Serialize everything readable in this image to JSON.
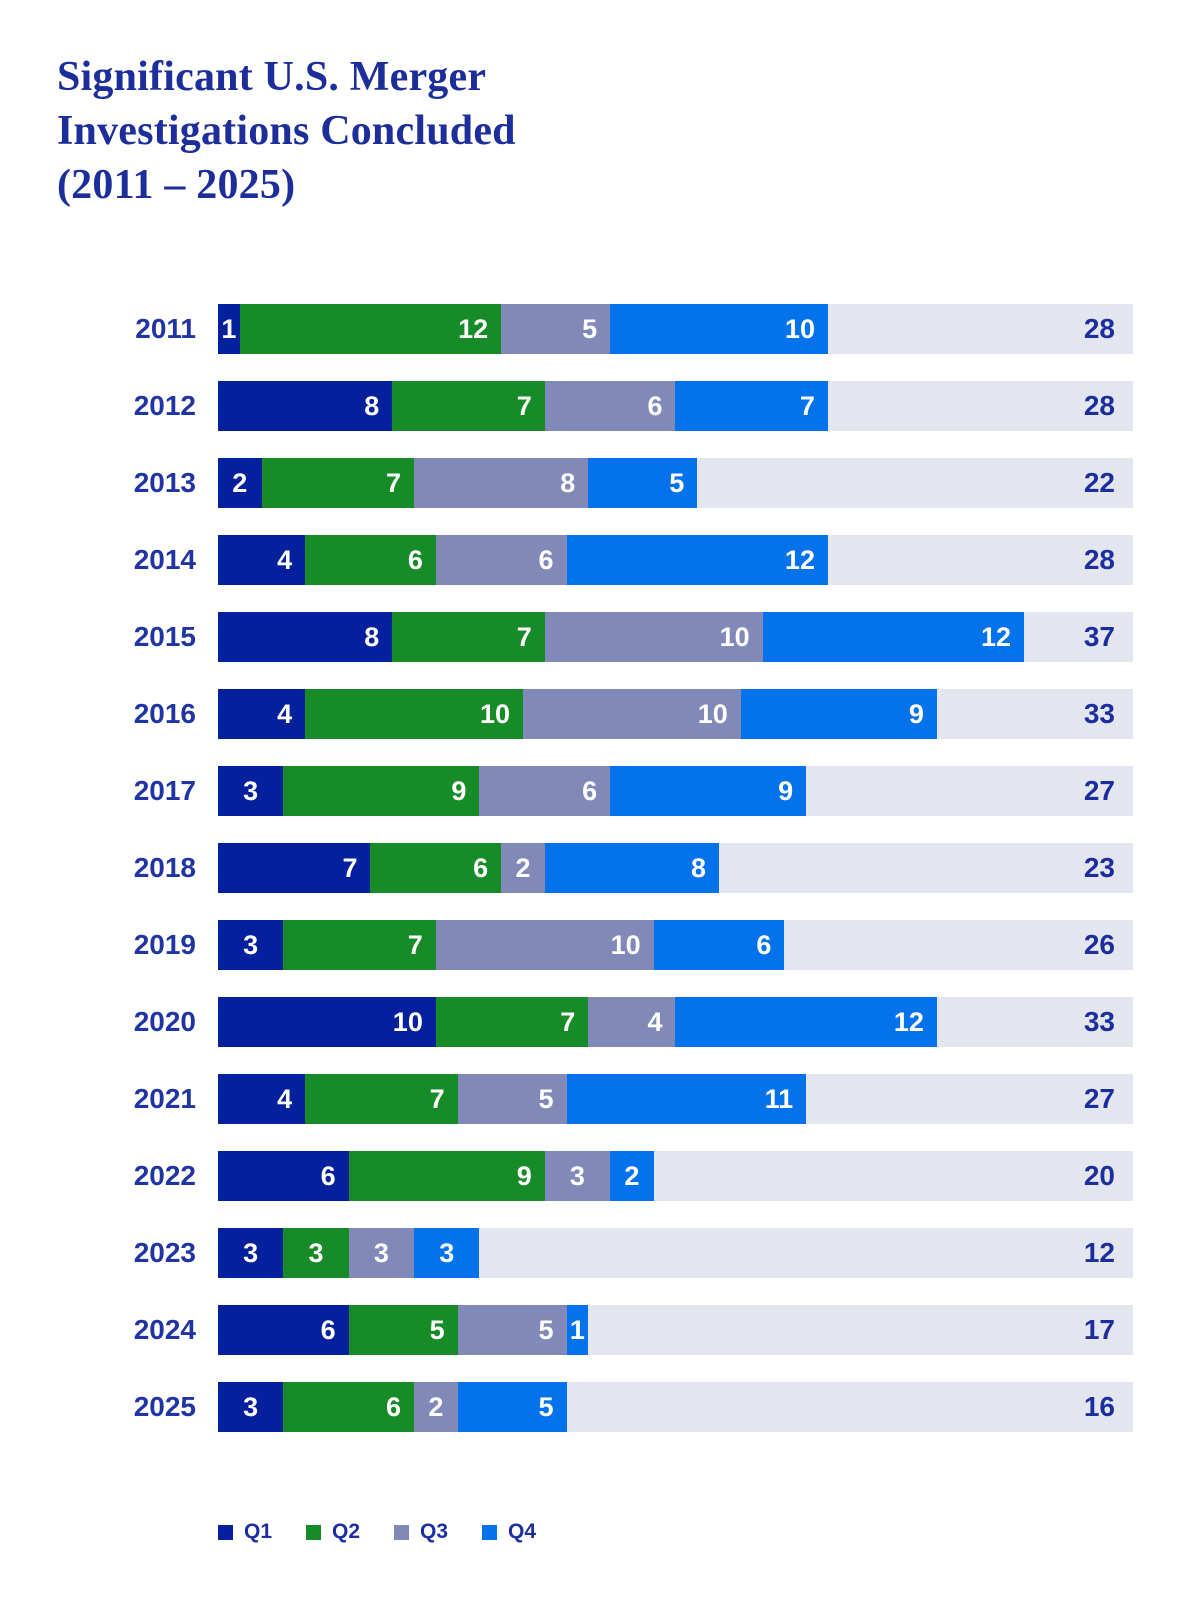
{
  "title": {
    "line1": "Significant U.S. Merger",
    "line2": "Investigations Concluded",
    "line3": "(2011 – 2025)"
  },
  "colors": {
    "q1": "#04209c",
    "q2": "#168b28",
    "q3": "#8189b9",
    "q4": "#0473eb",
    "track": "#e4e6ef",
    "bar_value_text": "#ffffff",
    "year_label_text": "#2134a3",
    "total_text": "#1c2e9e",
    "title_text": "#1d2e9a"
  },
  "legend": {
    "items": [
      {
        "label": "Q1",
        "color_key": "q1"
      },
      {
        "label": "Q2",
        "color_key": "q2"
      },
      {
        "label": "Q3",
        "color_key": "q3"
      },
      {
        "label": "Q4",
        "color_key": "q4"
      }
    ]
  },
  "chart_data": {
    "type": "bar",
    "orientation": "horizontal",
    "stacked": true,
    "title": "Significant U.S. Merger Investigations Concluded (2011 – 2025)",
    "legend_position": "bottom",
    "x_max_units": 42,
    "categories": [
      "2011",
      "2012",
      "2013",
      "2014",
      "2015",
      "2016",
      "2017",
      "2018",
      "2019",
      "2020",
      "2021",
      "2022",
      "2023",
      "2024",
      "2025"
    ],
    "series": [
      {
        "name": "Q1",
        "color_key": "q1",
        "values": [
          1,
          8,
          2,
          4,
          8,
          4,
          3,
          7,
          3,
          10,
          4,
          6,
          3,
          6,
          3
        ]
      },
      {
        "name": "Q2",
        "color_key": "q2",
        "values": [
          12,
          7,
          7,
          6,
          7,
          10,
          9,
          6,
          7,
          7,
          7,
          9,
          3,
          5,
          6
        ]
      },
      {
        "name": "Q3",
        "color_key": "q3",
        "values": [
          5,
          6,
          8,
          6,
          10,
          10,
          6,
          2,
          10,
          4,
          5,
          3,
          3,
          5,
          2
        ]
      },
      {
        "name": "Q4",
        "color_key": "q4",
        "values": [
          10,
          7,
          5,
          12,
          12,
          9,
          9,
          8,
          6,
          12,
          11,
          2,
          3,
          1,
          5
        ]
      }
    ],
    "totals": [
      28,
      28,
      22,
      28,
      37,
      33,
      27,
      23,
      26,
      33,
      27,
      20,
      12,
      17,
      16
    ]
  }
}
